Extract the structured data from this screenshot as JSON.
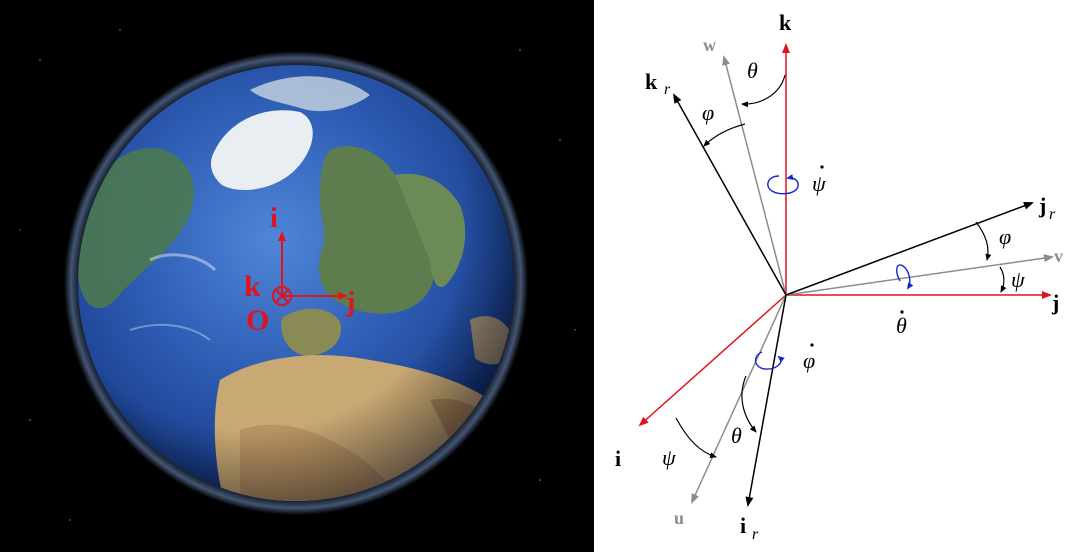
{
  "globe": {
    "labels": {
      "i": "i",
      "j": "j",
      "k": "k",
      "origin": "O"
    },
    "colors": {
      "axis": "#e0141c",
      "space": "#000000",
      "ocean": "#2f5fb8"
    }
  },
  "axes": {
    "labels": {
      "k": "k",
      "w": "w",
      "kr": "k",
      "kr_sub": "r",
      "jr": "j",
      "jr_sub": "r",
      "v": "v",
      "j": "j",
      "i": "i",
      "u": "u",
      "ir": "i",
      "ir_sub": "r"
    },
    "angles": {
      "theta_top": "θ",
      "phi_top": "φ",
      "phi_right": "φ",
      "psi_right": "ψ",
      "psi_bottom": "ψ",
      "theta_bottom": "θ"
    },
    "rates": {
      "psi_dot": "ψ",
      "theta_dot": "θ",
      "phi_dot": "φ"
    },
    "colors": {
      "base": "#e0141c",
      "intermediate": "#8c8c8c",
      "body": "#000000",
      "rotation": "#1428c8"
    }
  }
}
